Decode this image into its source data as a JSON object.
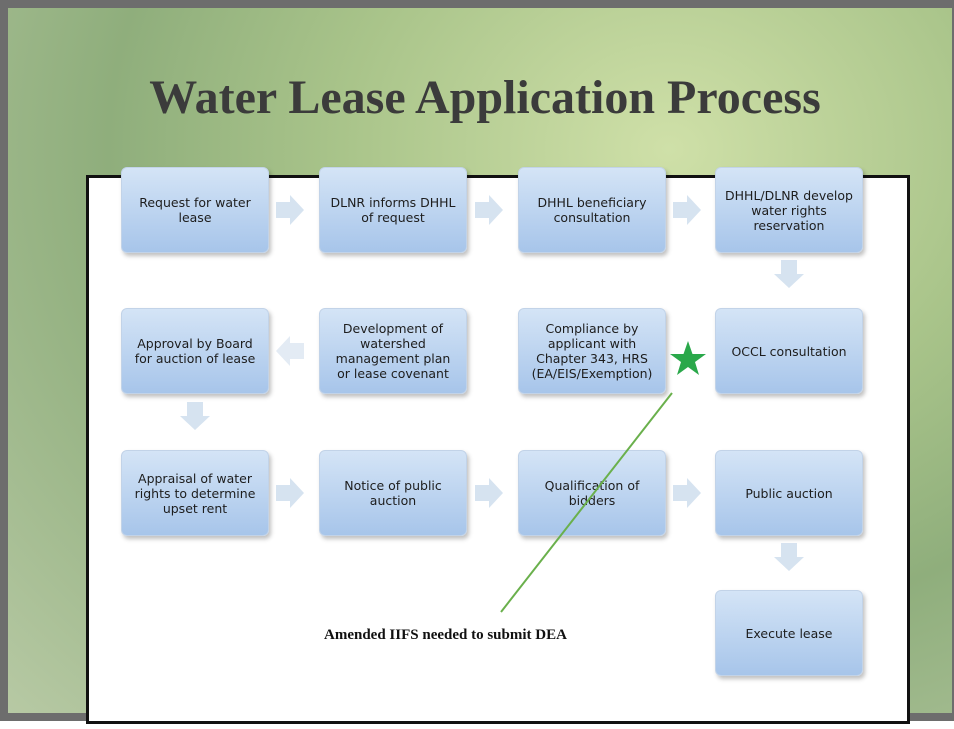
{
  "title": "Water Lease Application Process",
  "nodes": [
    {
      "label": "Request for water lease"
    },
    {
      "label": "DLNR informs DHHL of request"
    },
    {
      "label": "DHHL beneficiary consultation"
    },
    {
      "label": "DHHL/DLNR develop water rights reservation"
    },
    {
      "label": "Approval by Board for auction of lease"
    },
    {
      "label": "Development of watershed management plan or lease covenant"
    },
    {
      "label": "Compliance by applicant with Chapter 343, HRS (EA/EIS/Exemption)"
    },
    {
      "label": "OCCL consultation"
    },
    {
      "label": "Appraisal of water rights to determine upset rent"
    },
    {
      "label": "Notice of public auction"
    },
    {
      "label": "Qualification of bidders"
    },
    {
      "label": "Public auction"
    },
    {
      "label": "Execute lease"
    }
  ],
  "annotation": "Amended IIFS needed to submit DEA"
}
